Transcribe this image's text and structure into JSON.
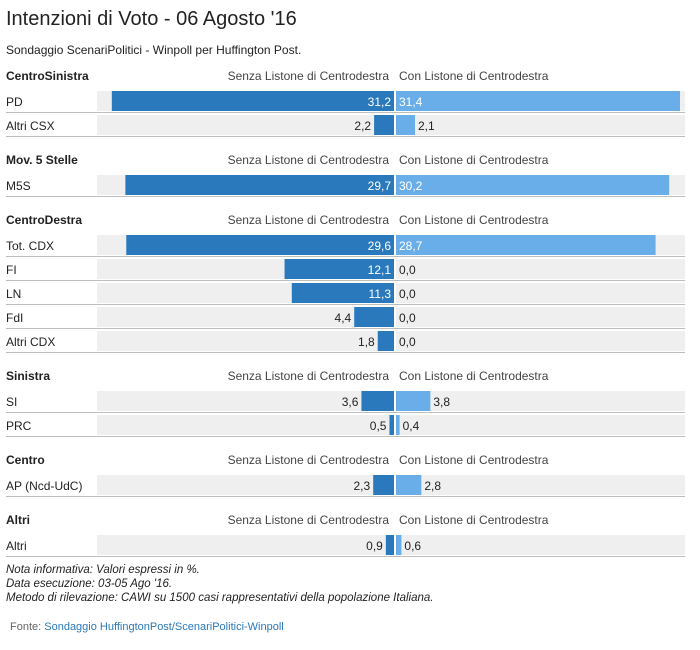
{
  "title": "Intenzioni di Voto - 06 Agosto '16",
  "subtitle": "Sondaggio ScenariPolitici - Winpoll per Huffington Post.",
  "colors": {
    "left_bar": "#2a79bd",
    "right_bar": "#6aaee9",
    "row_bg": "#efefef"
  },
  "chart_data": {
    "type": "bar",
    "orientation": "horizontal-back-to-back",
    "left_label": "Senza Listone di Centrodestra",
    "right_label": "Con Listone di Centrodestra",
    "xlim": [
      0,
      31.4
    ],
    "groups": [
      {
        "name": "CentroSinistra",
        "rows": [
          {
            "label": "PD",
            "senza": 31.2,
            "con": 31.4,
            "senza_text": "31,2",
            "con_text": "31,4"
          },
          {
            "label": "Altri CSX",
            "senza": 2.2,
            "con": 2.1,
            "senza_text": "2,2",
            "con_text": "2,1"
          }
        ]
      },
      {
        "name": "Mov. 5 Stelle",
        "rows": [
          {
            "label": "M5S",
            "senza": 29.7,
            "con": 30.2,
            "senza_text": "29,7",
            "con_text": "30,2"
          }
        ]
      },
      {
        "name": "CentroDestra",
        "rows": [
          {
            "label": "Tot. CDX",
            "senza": 29.6,
            "con": 28.7,
            "senza_text": "29,6",
            "con_text": "28,7"
          },
          {
            "label": "FI",
            "senza": 12.1,
            "con": 0.0,
            "senza_text": "12,1",
            "con_text": "0,0"
          },
          {
            "label": "LN",
            "senza": 11.3,
            "con": 0.0,
            "senza_text": "11,3",
            "con_text": "0,0"
          },
          {
            "label": "FdI",
            "senza": 4.4,
            "con": 0.0,
            "senza_text": "4,4",
            "con_text": "0,0"
          },
          {
            "label": "Altri CDX",
            "senza": 1.8,
            "con": 0.0,
            "senza_text": "1,8",
            "con_text": "0,0"
          }
        ]
      },
      {
        "name": "Sinistra",
        "rows": [
          {
            "label": "SI",
            "senza": 3.6,
            "con": 3.8,
            "senza_text": "3,6",
            "con_text": "3,8"
          },
          {
            "label": "PRC",
            "senza": 0.5,
            "con": 0.4,
            "senza_text": "0,5",
            "con_text": "0,4"
          }
        ]
      },
      {
        "name": "Centro",
        "rows": [
          {
            "label": "AP (Ncd-UdC)",
            "senza": 2.3,
            "con": 2.8,
            "senza_text": "2,3",
            "con_text": "2,8"
          }
        ]
      },
      {
        "name": "Altri",
        "rows": [
          {
            "label": "Altri",
            "senza": 0.9,
            "con": 0.6,
            "senza_text": "0,9",
            "con_text": "0,6"
          }
        ]
      }
    ]
  },
  "notes": [
    "Nota informativa: Valori espressi in %.",
    "Data esecuzione: 03-05 Ago '16.",
    "Metodo di rilevazione: CAWI su 1500 casi rappresentativi della popolazione Italiana."
  ],
  "source": {
    "prefix": "Fonte: ",
    "link_text": "Sondaggio HuffingtonPost/ScenariPolitici-Winpoll"
  }
}
